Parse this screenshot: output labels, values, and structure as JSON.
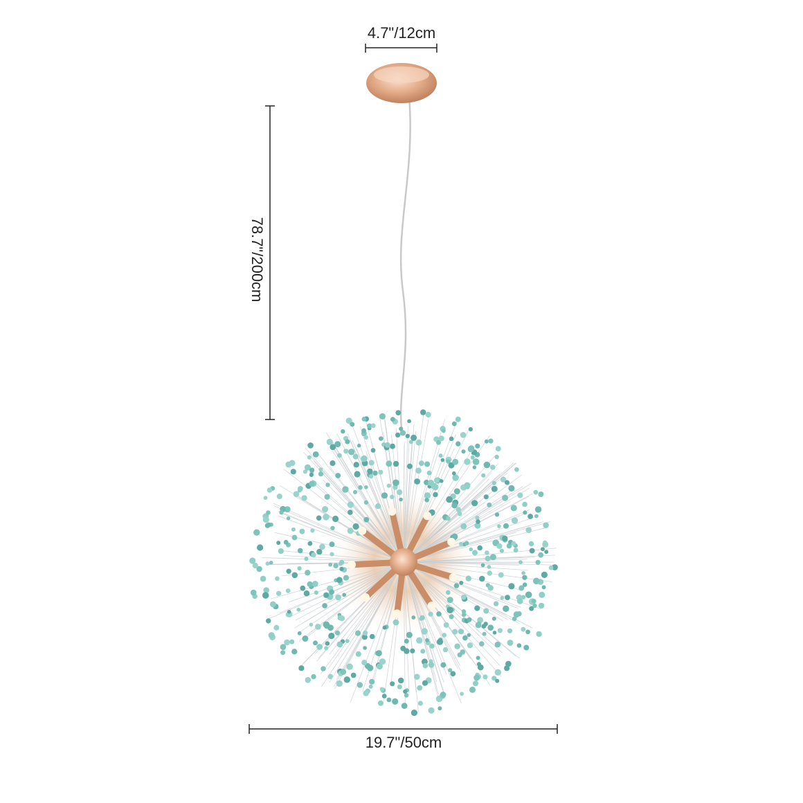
{
  "dimensions": {
    "canopy_width": "4.7\"/12cm",
    "cord_length": "78.7\"/200cm",
    "fixture_width": "19.7\"/50cm"
  }
}
